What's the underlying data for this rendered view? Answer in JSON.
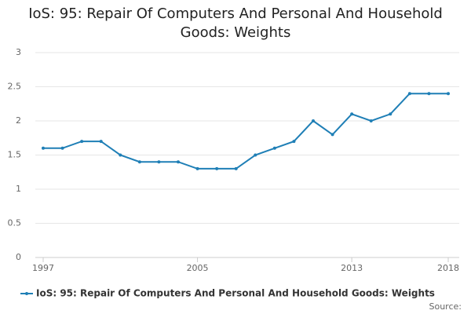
{
  "chart_data": {
    "type": "line",
    "title": "IoS: 95: Repair Of Computers And Personal And Household Goods: Weights",
    "x": [
      1997,
      1998,
      1999,
      2000,
      2001,
      2002,
      2003,
      2004,
      2005,
      2006,
      2007,
      2008,
      2009,
      2010,
      2011,
      2012,
      2013,
      2014,
      2015,
      2016,
      2017,
      2018
    ],
    "series": [
      {
        "name": "IoS: 95: Repair Of Computers And Personal And Household Goods: Weights",
        "color": "#1f7fb6",
        "values": [
          1.6,
          1.6,
          1.7,
          1.7,
          1.5,
          1.4,
          1.4,
          1.4,
          1.3,
          1.3,
          1.3,
          1.5,
          1.6,
          1.7,
          2.0,
          1.8,
          2.1,
          2.0,
          2.1,
          2.4,
          2.4,
          2.4
        ]
      }
    ],
    "xlim": [
      1997,
      2018
    ],
    "xticks": [
      1997,
      2005,
      2013,
      2018
    ],
    "ylim": [
      0,
      3
    ],
    "yticks": [
      0,
      0.5,
      1,
      1.5,
      2,
      2.5,
      3
    ],
    "grid": true,
    "source": "Source:"
  }
}
